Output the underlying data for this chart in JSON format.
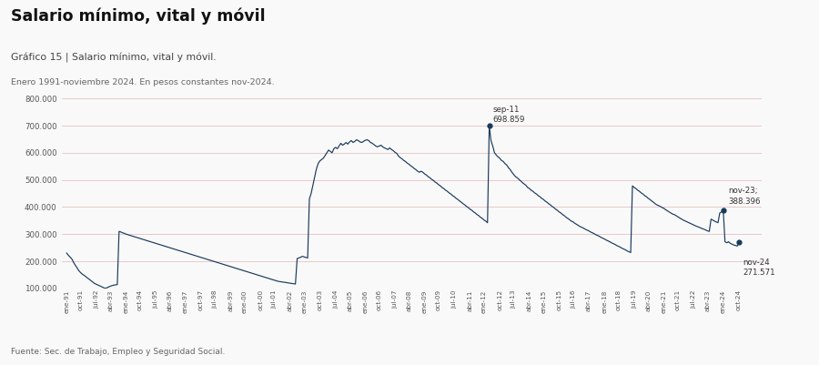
{
  "title": "Salario mínimo, vital y móvil",
  "subtitle": "Gráfico 15 | Salario mínimo, vital y móvil.",
  "date_range": "Enero 1991-noviembre 2024. En pesos constantes nov-2024.",
  "source": "Fuente: Sec. de Trabajo, Empleo y Seguridad Social.",
  "line_color": "#1a3a5c",
  "background_color": "#f9f9f9",
  "ylim": [
    100000,
    800000
  ],
  "yticks": [
    100000,
    200000,
    300000,
    400000,
    500000,
    600000,
    700000,
    800000
  ],
  "series": [
    230000,
    222000,
    215000,
    208000,
    195000,
    185000,
    175000,
    165000,
    158000,
    152000,
    148000,
    143000,
    138000,
    133000,
    128000,
    123000,
    118000,
    115000,
    112000,
    109000,
    106000,
    103000,
    100000,
    102000,
    105000,
    108000,
    110000,
    112000,
    113000,
    114000,
    310000,
    308000,
    305000,
    303000,
    300000,
    298000,
    296000,
    294000,
    292000,
    290000,
    288000,
    286000,
    284000,
    282000,
    280000,
    278000,
    276000,
    274000,
    272000,
    270000,
    268000,
    266000,
    264000,
    262000,
    260000,
    258000,
    256000,
    254000,
    252000,
    250000,
    248000,
    246000,
    244000,
    242000,
    240000,
    238000,
    236000,
    234000,
    232000,
    230000,
    228000,
    226000,
    224000,
    222000,
    220000,
    218000,
    216000,
    214000,
    212000,
    210000,
    208000,
    206000,
    204000,
    202000,
    200000,
    198000,
    196000,
    194000,
    192000,
    190000,
    188000,
    186000,
    184000,
    182000,
    180000,
    178000,
    176000,
    174000,
    172000,
    170000,
    168000,
    166000,
    164000,
    162000,
    160000,
    158000,
    156000,
    154000,
    152000,
    150000,
    148000,
    146000,
    144000,
    142000,
    140000,
    138000,
    136000,
    134000,
    132000,
    130000,
    128000,
    126000,
    125000,
    124000,
    123000,
    122000,
    121000,
    120000,
    119000,
    118000,
    117000,
    116000,
    210000,
    212000,
    215000,
    218000,
    216000,
    214000,
    212000,
    430000,
    450000,
    480000,
    510000,
    540000,
    560000,
    570000,
    575000,
    580000,
    590000,
    600000,
    610000,
    605000,
    600000,
    615000,
    620000,
    615000,
    625000,
    635000,
    628000,
    632000,
    638000,
    632000,
    640000,
    645000,
    638000,
    642000,
    648000,
    645000,
    640000,
    638000,
    642000,
    646000,
    648000,
    645000,
    638000,
    635000,
    630000,
    625000,
    622000,
    625000,
    628000,
    622000,
    618000,
    615000,
    612000,
    618000,
    612000,
    608000,
    602000,
    598000,
    588000,
    582000,
    578000,
    572000,
    568000,
    562000,
    558000,
    552000,
    548000,
    542000,
    538000,
    532000,
    528000,
    532000,
    528000,
    522000,
    518000,
    512000,
    508000,
    502000,
    498000,
    492000,
    488000,
    482000,
    478000,
    472000,
    468000,
    462000,
    458000,
    452000,
    448000,
    442000,
    438000,
    432000,
    428000,
    422000,
    418000,
    412000,
    408000,
    402000,
    398000,
    392000,
    388000,
    382000,
    378000,
    372000,
    368000,
    362000,
    358000,
    352000,
    348000,
    342000,
    698859,
    645000,
    625000,
    600000,
    592000,
    585000,
    580000,
    572000,
    568000,
    560000,
    555000,
    545000,
    538000,
    528000,
    520000,
    512000,
    508000,
    502000,
    496000,
    490000,
    485000,
    480000,
    472000,
    468000,
    462000,
    458000,
    452000,
    448000,
    442000,
    438000,
    432000,
    428000,
    422000,
    418000,
    412000,
    408000,
    402000,
    398000,
    392000,
    388000,
    382000,
    378000,
    372000,
    368000,
    362000,
    358000,
    353000,
    348000,
    345000,
    340000,
    336000,
    332000,
    328000,
    325000,
    322000,
    318000,
    315000,
    312000,
    308000,
    305000,
    302000,
    298000,
    295000,
    292000,
    288000,
    285000,
    282000,
    278000,
    275000,
    272000,
    268000,
    265000,
    262000,
    258000,
    255000,
    252000,
    248000,
    245000,
    242000,
    238000,
    235000,
    232000,
    478000,
    472000,
    468000,
    462000,
    458000,
    452000,
    448000,
    442000,
    438000,
    432000,
    428000,
    422000,
    418000,
    412000,
    408000,
    405000,
    402000,
    398000,
    395000,
    390000,
    386000,
    382000,
    378000,
    374000,
    372000,
    368000,
    364000,
    360000,
    356000,
    352000,
    349000,
    346000,
    343000,
    340000,
    337000,
    334000,
    331000,
    328000,
    326000,
    323000,
    320000,
    318000,
    315000,
    312000,
    310000,
    355000,
    352000,
    348000,
    345000,
    342000,
    378000,
    382000,
    388396,
    272000,
    268000,
    272000,
    266000,
    263000,
    260000,
    258000,
    256000,
    271571
  ],
  "xtick_labels": [
    "ene-91",
    "oct-91",
    "jul-92",
    "abr-93",
    "ene-94",
    "oct-94",
    "jul-95",
    "abr-96",
    "ene-97",
    "oct-97",
    "jul-98",
    "abr-99",
    "ene-00",
    "oct-00",
    "jul-01",
    "abr-02",
    "ene-03",
    "oct-03",
    "jul-04",
    "abr-05",
    "ene-06",
    "oct-06",
    "jul-07",
    "abr-08",
    "ene-09",
    "oct-09",
    "jul-10",
    "abr-11",
    "ene-12",
    "oct-12",
    "jul-13",
    "abr-14",
    "ene-15",
    "oct-15",
    "jul-16",
    "abr-17",
    "ene-18",
    "oct-18",
    "jul-19",
    "abr-20",
    "ene-21",
    "oct-21",
    "jul-22",
    "abr-23",
    "ene-24",
    "oct-24"
  ],
  "peak_idx": 242,
  "peak_val": 698859,
  "peak_label": "sep-11\n698.859",
  "nov23_val": 388396,
  "nov23_label": "nov-23;\n388.396",
  "nov24_val": 271571,
  "nov24_label": "nov-24\n271.571"
}
